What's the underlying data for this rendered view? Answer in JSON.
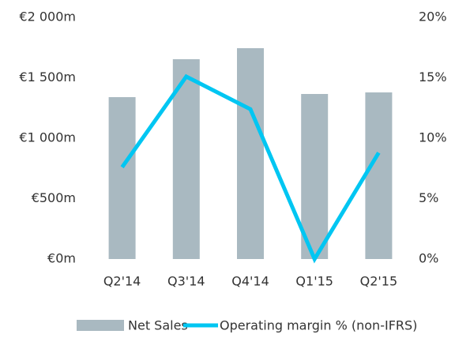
{
  "chart_data": {
    "type": "bar",
    "categories": [
      "Q2'14",
      "Q3'14",
      "Q4'14",
      "Q1'15",
      "Q2'15"
    ],
    "series": [
      {
        "name": "Net Sales",
        "type": "bar",
        "color": "#a9b9c1",
        "values": [
          1340,
          1654,
          1745,
          1366,
          1379
        ]
      },
      {
        "name": "Operating margin % (non-IFRS)",
        "type": "line",
        "axis": "y2",
        "color": "#00c6f2",
        "values": [
          7.6,
          15.1,
          12.4,
          0,
          8.8
        ]
      }
    ],
    "ylim": [
      0,
      2000
    ],
    "yticks": [
      {
        "value": 0,
        "label": "€0m"
      },
      {
        "value": 500,
        "label": "€500m"
      },
      {
        "value": 1000,
        "label": "€1 000m"
      },
      {
        "value": 1500,
        "label": "€1 500m"
      },
      {
        "value": 2000,
        "label": "€2 000m"
      }
    ],
    "y2lim": [
      0,
      20
    ],
    "y2ticks": [
      {
        "value": 0,
        "label": "0%"
      },
      {
        "value": 5,
        "label": "5%"
      },
      {
        "value": 10,
        "label": "10%"
      },
      {
        "value": 15,
        "label": "15%"
      },
      {
        "value": 20,
        "label": "20%"
      }
    ],
    "grid": false,
    "legend": "bottom"
  }
}
